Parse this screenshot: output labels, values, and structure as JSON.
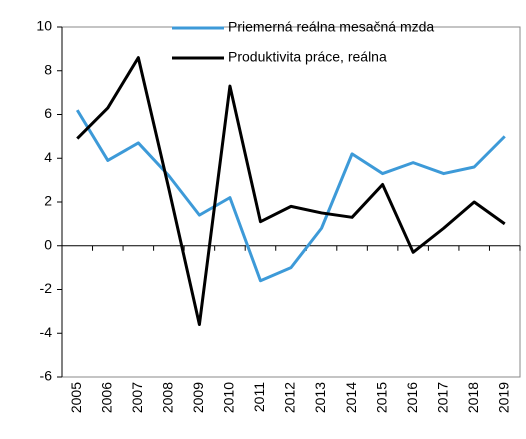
{
  "chart_data": {
    "type": "line",
    "categories": [
      "2005",
      "2006",
      "2007",
      "2008",
      "2009",
      "2010",
      "2011",
      "2012",
      "2013",
      "2014",
      "2015",
      "2016",
      "2017",
      "2018",
      "2019"
    ],
    "series": [
      {
        "name": "Priemerná reálna mesačná mzda",
        "color": "#3d9ad8",
        "values": [
          6.2,
          3.9,
          4.7,
          3.2,
          1.4,
          2.2,
          -1.6,
          -1.0,
          0.8,
          4.2,
          3.3,
          3.8,
          3.3,
          3.6,
          5.0
        ]
      },
      {
        "name": "Produktivita práce, reálna",
        "color": "#000000",
        "values": [
          4.9,
          6.3,
          8.6,
          2.6,
          -3.6,
          7.3,
          1.1,
          1.8,
          1.5,
          1.3,
          2.8,
          -0.3,
          0.8,
          2.0,
          1.0
        ]
      }
    ],
    "ylim": [
      -6,
      10
    ],
    "yticks": [
      -6,
      -4,
      -2,
      0,
      2,
      4,
      6,
      8,
      10
    ],
    "grid": false,
    "legend": "top"
  }
}
